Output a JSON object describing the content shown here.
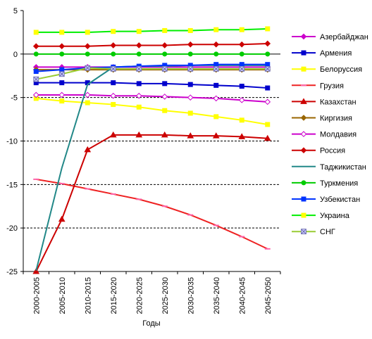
{
  "chart_data": {
    "type": "line",
    "xlabel": "Годы",
    "ylabel": "",
    "ylim": [
      -25,
      5
    ],
    "yticks": [
      5,
      0,
      -5,
      -10,
      -15,
      -20,
      -25
    ],
    "grid": "dashed horizontal lines at -5, -10, -15, -20",
    "legend_position": "right",
    "categories": [
      "2000-2005",
      "2005-2010",
      "2010-2015",
      "2015-2020",
      "2020-2025",
      "2025-2030",
      "2030-2035",
      "2035-2040",
      "2040-2045",
      "2045-2050"
    ],
    "series": [
      {
        "name": "Азербайджан",
        "color": "#cc00cc",
        "marker": "diamond",
        "values": [
          -1.5,
          -1.5,
          -1.5,
          -1.5,
          -1.5,
          -1.5,
          -1.5,
          -1.5,
          -1.5,
          -1.5
        ]
      },
      {
        "name": "Армения",
        "color": "#0000cc",
        "marker": "square",
        "values": [
          -3.3,
          -3.3,
          -3.3,
          -3.3,
          -3.4,
          -3.4,
          -3.5,
          -3.6,
          -3.7,
          -3.9
        ]
      },
      {
        "name": "Белоруссия",
        "color": "#ffff00",
        "marker": "square",
        "values": [
          -5.1,
          -5.4,
          -5.6,
          -5.8,
          -6.1,
          -6.5,
          -6.8,
          -7.2,
          -7.6,
          -8.1
        ]
      },
      {
        "name": "Грузия",
        "color": "#ee2222",
        "marker": "dash",
        "values": [
          -14.4,
          -14.9,
          -15.5,
          -16.1,
          -16.7,
          -17.5,
          -18.5,
          -19.7,
          -21.0,
          -22.4
        ]
      },
      {
        "name": "Казахстан",
        "color": "#cc0000",
        "marker": "triangle",
        "values": [
          -25.0,
          -19.0,
          -11.0,
          -9.3,
          -9.3,
          -9.3,
          -9.4,
          -9.4,
          -9.5,
          -9.7
        ]
      },
      {
        "name": "Киргизия",
        "color": "#996600",
        "marker": "diamond",
        "values": [
          -1.8,
          -1.8,
          -1.8,
          -1.8,
          -1.8,
          -1.8,
          -1.8,
          -1.8,
          -1.8,
          -1.8
        ]
      },
      {
        "name": "Молдавия",
        "color": "#cc00cc",
        "marker": "diamond-open",
        "values": [
          -4.7,
          -4.7,
          -4.7,
          -4.8,
          -4.8,
          -4.9,
          -5.0,
          -5.1,
          -5.3,
          -5.5
        ]
      },
      {
        "name": "Россия",
        "color": "#cc0000",
        "marker": "diamond",
        "values": [
          0.9,
          0.9,
          0.9,
          1.0,
          1.0,
          1.0,
          1.1,
          1.1,
          1.1,
          1.2
        ]
      },
      {
        "name": "Таджикистан",
        "color": "#228888",
        "marker": "none",
        "values": [
          -24.9,
          -13.1,
          -3.5,
          -1.5,
          -1.4,
          -1.4,
          -1.3,
          -1.3,
          -1.3,
          -1.3
        ]
      },
      {
        "name": "Туркмения",
        "color": "#00cc00",
        "marker": "circle",
        "values": [
          0,
          0,
          0,
          0,
          0,
          0,
          0,
          0,
          0,
          0
        ]
      },
      {
        "name": "Узбекистан",
        "color": "#0033ff",
        "marker": "square",
        "values": [
          -2.0,
          -1.8,
          -1.6,
          -1.5,
          -1.4,
          -1.3,
          -1.3,
          -1.2,
          -1.2,
          -1.2
        ]
      },
      {
        "name": "Украина",
        "color": "#00ee00",
        "marker": "square-yellow",
        "values": [
          2.5,
          2.5,
          2.5,
          2.6,
          2.6,
          2.7,
          2.7,
          2.8,
          2.8,
          2.9
        ]
      },
      {
        "name": "СНГ",
        "color": "#99cc33",
        "marker": "x-square",
        "values": [
          -2.9,
          -2.3,
          -1.6,
          -1.7,
          -1.7,
          -1.7,
          -1.7,
          -1.7,
          -1.7,
          -1.7
        ]
      }
    ]
  }
}
